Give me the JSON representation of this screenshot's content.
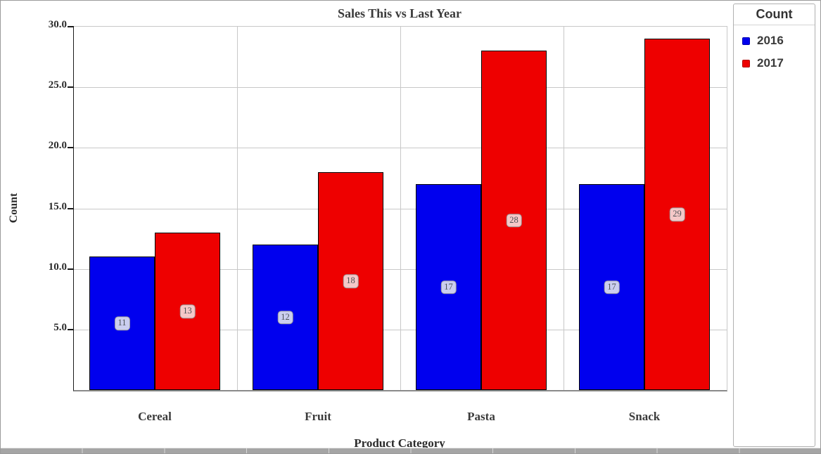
{
  "chart_data": {
    "type": "bar",
    "title": "Sales This vs Last Year",
    "xlabel": "Product Category",
    "ylabel": "Count",
    "categories": [
      "Cereal",
      "Fruit",
      "Pasta",
      "Snack"
    ],
    "series": [
      {
        "name": "2016",
        "color": "#0000ee",
        "label_bg": "#cbcef0",
        "values": [
          11,
          12,
          17,
          17
        ]
      },
      {
        "name": "2017",
        "color": "#ee0000",
        "label_bg": "#f5c8c8",
        "values": [
          13,
          18,
          28,
          29
        ]
      }
    ],
    "ylim": [
      0,
      30
    ],
    "ytick_step": 5,
    "ytick_labels": [
      "5.0",
      "10.0",
      "15.0",
      "20.0",
      "25.0",
      "30.0"
    ],
    "grid": true,
    "bar_value_labels_shown": true,
    "legend": {
      "title": "Count",
      "position": "right"
    }
  },
  "colors": {
    "axis_line": "#1a1a1a",
    "gridline": "#c8c8c8",
    "baseline": "#8a8a8a",
    "text": "#2b2b2b",
    "window_border": "#9b9b9b"
  }
}
